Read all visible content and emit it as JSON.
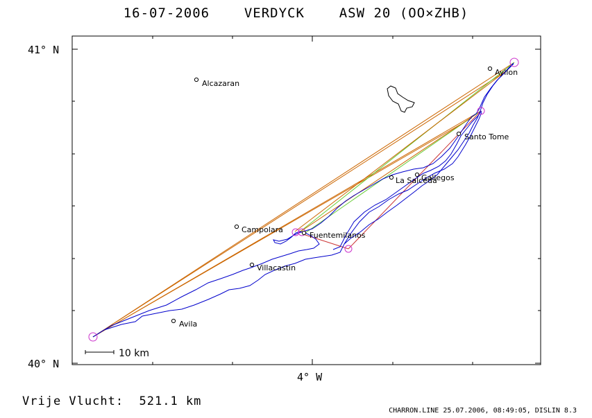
{
  "title": {
    "date": "16-07-2006",
    "pilot": "VERDYCK",
    "glider": "ASW 20 (OO×ZHB)"
  },
  "axes": {
    "lat_top": "41° N",
    "lat_bottom": "40° N",
    "lon_center": "4° W"
  },
  "scale_bar": {
    "label": "10 km"
  },
  "places": [
    {
      "name": "Alcazaran"
    },
    {
      "name": "Ayllon"
    },
    {
      "name": "Santo Tome"
    },
    {
      "name": "La Salceda"
    },
    {
      "name": "Gallegos"
    },
    {
      "name": "Campolara"
    },
    {
      "name": "Fuentemilanos"
    },
    {
      "name": "Villacastin"
    },
    {
      "name": "Avila"
    }
  ],
  "footer": {
    "free_flight": "Vrije Vlucht:  521.1 km",
    "software": "CHARRON.LINE 25.07.2006, 08:49:05, DISLIN 8.3"
  },
  "colors": {
    "track": "#0000cc",
    "task_leg": "#cc6600",
    "task_leg_alt": "#66cc33",
    "connector": "#cc3333",
    "turnpoint": "#cc33cc"
  }
}
